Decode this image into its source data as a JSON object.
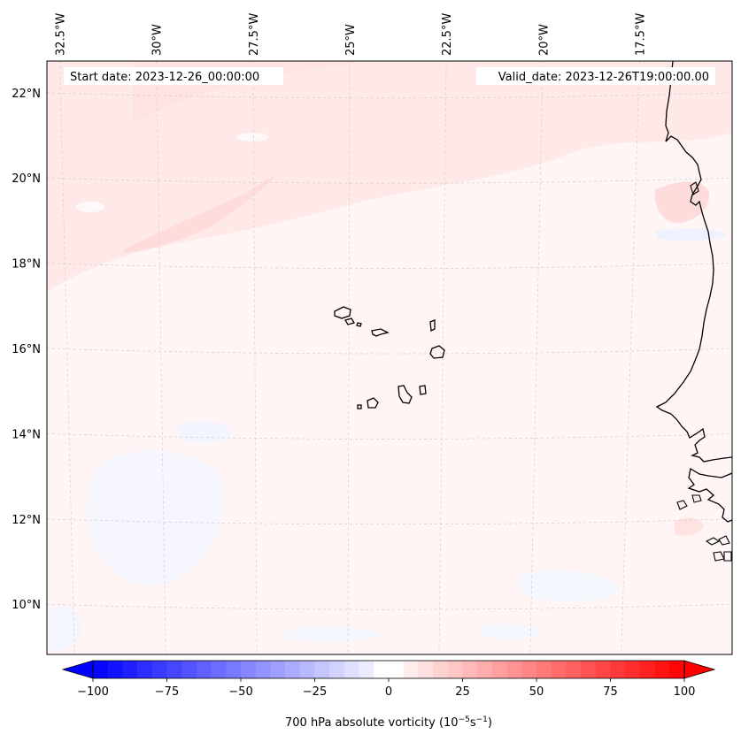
{
  "map": {
    "extent": {
      "lon_min": -32.7,
      "lon_max": -15.7,
      "lat_min": 8.9,
      "lat_max": 22.8
    },
    "lon_ticks": [
      {
        "value": -32.5,
        "label": "32.5°W"
      },
      {
        "value": -30.0,
        "label": "30°W"
      },
      {
        "value": -27.5,
        "label": "27.5°W"
      },
      {
        "value": -25.0,
        "label": "25°W"
      },
      {
        "value": -22.5,
        "label": "22.5°W"
      },
      {
        "value": -20.0,
        "label": "20°W"
      },
      {
        "value": -17.5,
        "label": "17.5°W"
      }
    ],
    "lat_ticks": [
      {
        "value": 10,
        "label": "10°N"
      },
      {
        "value": 12,
        "label": "12°N"
      },
      {
        "value": 14,
        "label": "14°N"
      },
      {
        "value": 16,
        "label": "16°N"
      },
      {
        "value": 18,
        "label": "18°N"
      },
      {
        "value": 20,
        "label": "20°N"
      },
      {
        "value": 22,
        "label": "22°N"
      }
    ],
    "start_date_text": "Start date: 2023-12-26_00:00:00",
    "valid_date_text": "Valid_date: 2023-12-26T19:00:00.00",
    "gridlines": true,
    "field_colors": {
      "background": "#fff5f5",
      "light_positive": "#ffe8e8",
      "moderate_positive": "#ffdcdc",
      "light_negative": "#f4f6ff"
    },
    "coastline_color": "#000000",
    "islands": [
      {
        "name": "Santo Antão"
      },
      {
        "name": "São Vicente"
      },
      {
        "name": "São Nicolau"
      },
      {
        "name": "Sal"
      },
      {
        "name": "Boa Vista"
      },
      {
        "name": "Maio"
      },
      {
        "name": "Santiago"
      },
      {
        "name": "Fogo"
      },
      {
        "name": "Brava"
      }
    ]
  },
  "colorbar": {
    "min": -100,
    "max": 100,
    "ticks": [
      {
        "value": -100,
        "label": "−100"
      },
      {
        "value": -75,
        "label": "−75"
      },
      {
        "value": -50,
        "label": "−50"
      },
      {
        "value": -25,
        "label": "−25"
      },
      {
        "value": 0,
        "label": "0"
      },
      {
        "value": 25,
        "label": "25"
      },
      {
        "value": 50,
        "label": "50"
      },
      {
        "value": 75,
        "label": "75"
      },
      {
        "value": 100,
        "label": "100"
      }
    ],
    "extend": "both",
    "colormap": "bwr",
    "label_main": "700 hPa absolute vorticity (10",
    "label_exp1": "−5",
    "label_mid": "s",
    "label_exp2": "−1",
    "label_end": ")"
  }
}
